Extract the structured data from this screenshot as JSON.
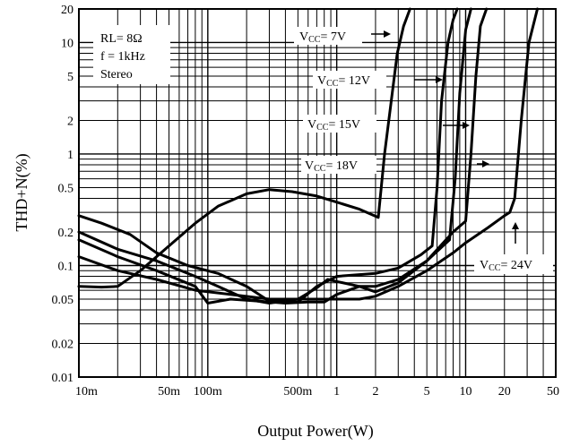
{
  "chart_data": {
    "type": "line",
    "title": "",
    "xlabel": "Output Power(W)",
    "ylabel": "THD+N(%)",
    "xscale": "log",
    "yscale": "log",
    "xlim": [
      0.01,
      50
    ],
    "ylim": [
      0.01,
      20
    ],
    "grid": true,
    "x_tick_labels": [
      {
        "v": 0.01,
        "t": "10m"
      },
      {
        "v": 0.05,
        "t": "50m"
      },
      {
        "v": 0.1,
        "t": "100m"
      },
      {
        "v": 0.5,
        "t": "500m"
      },
      {
        "v": 1,
        "t": "1"
      },
      {
        "v": 2,
        "t": "2"
      },
      {
        "v": 5,
        "t": "5"
      },
      {
        "v": 10,
        "t": "10"
      },
      {
        "v": 20,
        "t": "20"
      },
      {
        "v": 50,
        "t": "50"
      }
    ],
    "y_tick_labels": [
      {
        "v": 0.01,
        "t": "0.01"
      },
      {
        "v": 0.02,
        "t": "0.02"
      },
      {
        "v": 0.05,
        "t": "0.05"
      },
      {
        "v": 0.1,
        "t": "0.1"
      },
      {
        "v": 0.2,
        "t": "0.2"
      },
      {
        "v": 0.5,
        "t": "0.5"
      },
      {
        "v": 1,
        "t": "1"
      },
      {
        "v": 2,
        "t": "2"
      },
      {
        "v": 5,
        "t": "5"
      },
      {
        "v": 10,
        "t": "10"
      },
      {
        "v": 20,
        "t": "20"
      }
    ],
    "conditions": {
      "rl": "RL= 8Ω",
      "f": "f = 1kHz",
      "mode": "Stereo"
    },
    "series": [
      {
        "name": "Vcc= 7V",
        "x": [
          0.01,
          0.015,
          0.02,
          0.03,
          0.05,
          0.08,
          0.12,
          0.2,
          0.3,
          0.45,
          0.7,
          1.0,
          1.5,
          2.1,
          2.35,
          2.65,
          2.95,
          3.3,
          3.7
        ],
        "y": [
          0.065,
          0.064,
          0.065,
          0.09,
          0.15,
          0.24,
          0.34,
          0.44,
          0.48,
          0.46,
          0.42,
          0.37,
          0.32,
          0.27,
          1.0,
          3.0,
          8.0,
          14.0,
          20.0
        ]
      },
      {
        "name": "Vcc= 12V",
        "x": [
          0.01,
          0.015,
          0.025,
          0.04,
          0.07,
          0.12,
          0.2,
          0.3,
          0.5,
          0.7,
          1.0,
          1.5,
          2.0,
          3.0,
          4.5,
          5.5,
          6.0,
          6.5,
          7.3,
          8.0,
          8.6
        ],
        "y": [
          0.28,
          0.24,
          0.19,
          0.13,
          0.1,
          0.085,
          0.065,
          0.048,
          0.047,
          0.065,
          0.08,
          0.083,
          0.085,
          0.095,
          0.125,
          0.15,
          0.5,
          3.0,
          10.0,
          16.0,
          20.0
        ]
      },
      {
        "name": "Vcc= 15V",
        "x": [
          0.01,
          0.02,
          0.04,
          0.08,
          0.12,
          0.2,
          0.3,
          0.5,
          0.7,
          0.85,
          1.0,
          1.5,
          2.0,
          3.0,
          5.0,
          7.5,
          8.3,
          9.0,
          10.0,
          11.0
        ],
        "y": [
          0.2,
          0.14,
          0.11,
          0.08,
          0.065,
          0.05,
          0.046,
          0.05,
          0.063,
          0.075,
          0.072,
          0.065,
          0.065,
          0.075,
          0.11,
          0.17,
          0.6,
          3.5,
          13.0,
          20.0
        ]
      },
      {
        "name": "Vcc= 18V",
        "x": [
          0.01,
          0.02,
          0.04,
          0.08,
          0.1,
          0.15,
          0.25,
          0.4,
          0.6,
          0.8,
          1.0,
          1.5,
          2.0,
          3.0,
          5.0,
          8.0,
          10.0,
          11.0,
          12.0,
          13.0,
          14.5
        ],
        "y": [
          0.17,
          0.12,
          0.09,
          0.065,
          0.046,
          0.05,
          0.048,
          0.046,
          0.047,
          0.047,
          0.055,
          0.065,
          0.058,
          0.07,
          0.11,
          0.2,
          0.25,
          1.0,
          5.0,
          14.0,
          20.0
        ]
      },
      {
        "name": "Vcc= 24V",
        "x": [
          0.01,
          0.02,
          0.04,
          0.08,
          0.15,
          0.3,
          0.5,
          1.0,
          1.5,
          2.0,
          3.0,
          5.0,
          8.0,
          10.0,
          15.0,
          20.0,
          22.0,
          24.0,
          27.0,
          31.0,
          36.0
        ],
        "y": [
          0.12,
          0.09,
          0.075,
          0.06,
          0.055,
          0.05,
          0.05,
          0.05,
          0.05,
          0.053,
          0.065,
          0.09,
          0.13,
          0.16,
          0.22,
          0.28,
          0.3,
          0.4,
          2.0,
          10.0,
          20.0
        ]
      }
    ],
    "annotations": [
      {
        "label": "Vcc= 7V",
        "v": "V",
        "sub": "CC",
        "rest": "= 7V"
      },
      {
        "label": "Vcc= 12V",
        "v": "V",
        "sub": "CC",
        "rest": "= 12V"
      },
      {
        "label": "Vcc= 15V",
        "v": "V",
        "sub": "CC",
        "rest": "= 15V"
      },
      {
        "label": "Vcc= 18V",
        "v": "V",
        "sub": "CC",
        "rest": "= 18V"
      },
      {
        "label": "Vcc= 24V",
        "v": "V",
        "sub": "CC",
        "rest": "= 24V"
      }
    ]
  }
}
